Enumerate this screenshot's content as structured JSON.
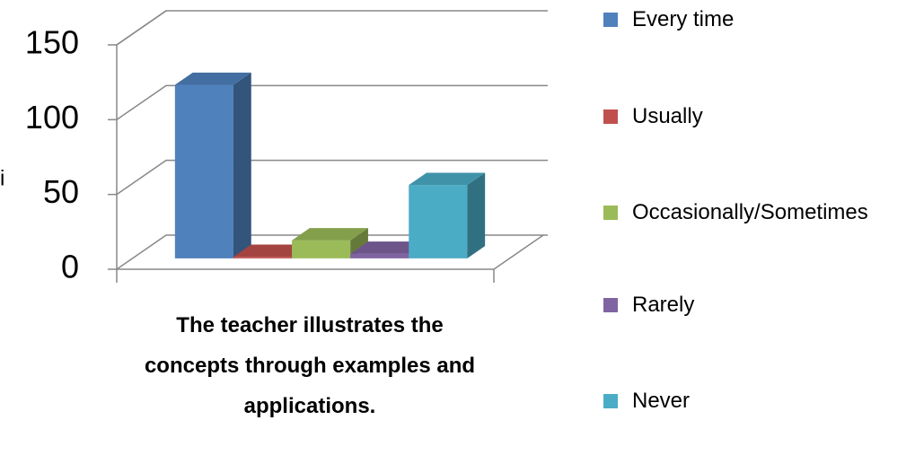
{
  "chart_data": {
    "type": "bar3d",
    "y_label": "i",
    "categories": [
      "The teacher illustrates the concepts through examples and applications."
    ],
    "series": [
      {
        "name": "Every time",
        "color": "#4f81bd",
        "values": [
          116
        ]
      },
      {
        "name": "Usually",
        "color": "#c0504d",
        "values": [
          1
        ]
      },
      {
        "name": "Occasionally/Sometimes",
        "color": "#9bbb59",
        "values": [
          12
        ]
      },
      {
        "name": "Rarely",
        "color": "#8064a2",
        "values": [
          3
        ]
      },
      {
        "name": "Never",
        "color": "#4bacc6",
        "values": [
          49
        ]
      }
    ],
    "ylim": [
      0,
      150
    ],
    "yticks": [
      0,
      50,
      100,
      150
    ],
    "grid": true
  }
}
